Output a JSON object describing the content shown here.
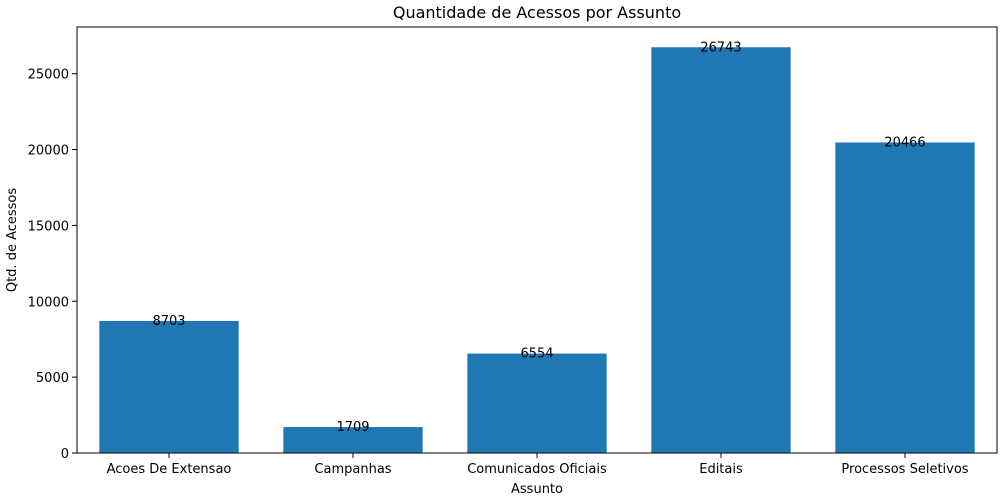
{
  "chart_data": {
    "type": "bar",
    "title": "Quantidade de Acessos por Assunto",
    "xlabel": "Assunto",
    "ylabel": "Qtd. de Acessos",
    "categories": [
      "Acoes De Extensao",
      "Campanhas",
      "Comunicados Oficiais",
      "Editais",
      "Processos Seletivos"
    ],
    "values": [
      8703,
      1709,
      6554,
      26743,
      20466
    ],
    "data_labels": [
      "8703",
      "1709",
      "6554",
      "26743",
      "20466"
    ],
    "ylim": [
      0,
      28078
    ],
    "yticks": [
      0,
      5000,
      10000,
      15000,
      20000,
      25000
    ],
    "ytick_labels": [
      "0",
      "5000",
      "10000",
      "15000",
      "20000",
      "25000"
    ],
    "bar_color": "#1f77b4",
    "grid": false,
    "legend": false
  }
}
